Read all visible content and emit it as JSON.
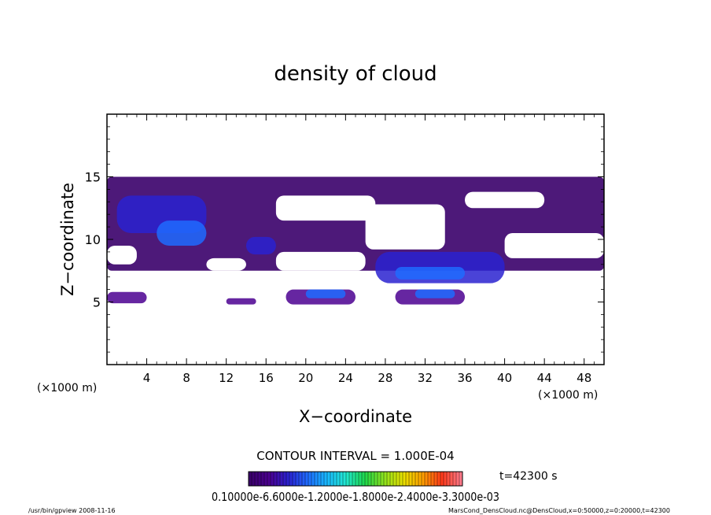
{
  "chart_data": {
    "type": "heatmap",
    "title": "density of cloud",
    "xlabel": "X−coordinate",
    "ylabel": "Z−coordinate",
    "x_unit_left": "(×1000 m)",
    "x_unit_right": "(×1000 m)",
    "xlim": [
      0,
      50
    ],
    "ylim": [
      0,
      20
    ],
    "x_ticks": [
      4,
      8,
      12,
      16,
      20,
      24,
      28,
      32,
      36,
      40,
      44,
      48
    ],
    "y_ticks": [
      5,
      10,
      15
    ],
    "grid": false,
    "colorbar_label": "0.10000e-6.6000e-1.2000e-1.8000e-2.4000e-3.3000e-03",
    "contour_interval": "CONTOUR INTERVAL = 1.000E-04",
    "time": "t=42300 s",
    "palette": [
      "#3a006a",
      "#4b0090",
      "#2a22d0",
      "#1f6bff",
      "#19b8ff",
      "#21e8d0",
      "#1ed84a",
      "#8ee21e",
      "#e8e000",
      "#ffa000",
      "#ff3a1a",
      "#ff7a8a"
    ],
    "cloud_regions": [
      {
        "x": [
          0,
          50
        ],
        "z": [
          7.5,
          15.0
        ],
        "level": 0
      },
      {
        "x": [
          1,
          10
        ],
        "z": [
          10.5,
          13.5
        ],
        "level": 2
      },
      {
        "x": [
          5,
          10
        ],
        "z": [
          9.5,
          11.5
        ],
        "level": 3
      },
      {
        "x": [
          14,
          17
        ],
        "z": [
          8.8,
          10.2
        ],
        "level": 2
      },
      {
        "x": [
          27,
          40
        ],
        "z": [
          6.5,
          9.0
        ],
        "level": 2
      },
      {
        "x": [
          29,
          36
        ],
        "z": [
          6.8,
          7.8
        ],
        "level": 3
      },
      {
        "x": [
          0,
          4
        ],
        "z": [
          4.9,
          5.8
        ],
        "level": 1
      },
      {
        "x": [
          18,
          25
        ],
        "z": [
          4.8,
          6.0
        ],
        "level": 1
      },
      {
        "x": [
          20,
          24
        ],
        "z": [
          5.3,
          6.0
        ],
        "level": 3
      },
      {
        "x": [
          29,
          36
        ],
        "z": [
          4.8,
          6.0
        ],
        "level": 1
      },
      {
        "x": [
          31,
          35
        ],
        "z": [
          5.3,
          6.0
        ],
        "level": 3
      },
      {
        "x": [
          12,
          15
        ],
        "z": [
          4.8,
          5.3
        ],
        "level": 1
      }
    ]
  },
  "footer": {
    "left": "/usr/bin/gpview  2008-11-16",
    "right": "MarsCond_DensCloud.nc@DensCloud,x=0:50000,z=0:20000,t=42300"
  }
}
